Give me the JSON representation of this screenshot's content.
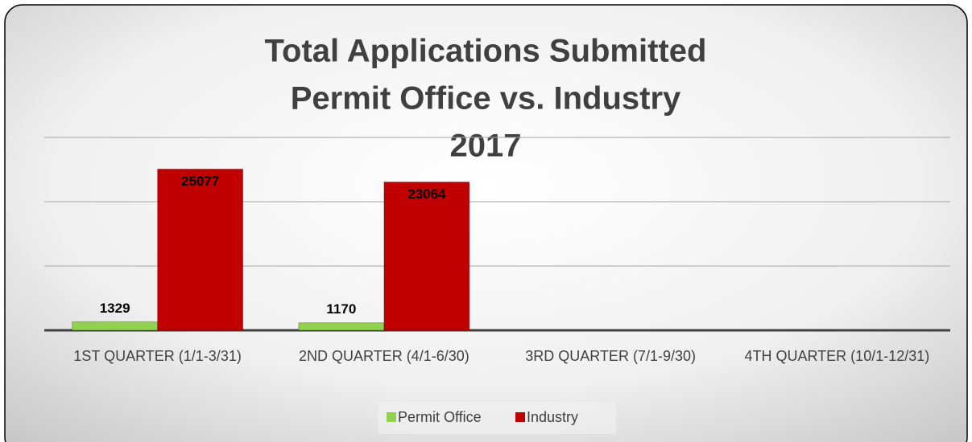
{
  "chart_data": {
    "type": "bar",
    "title": [
      "Total Applications Submitted",
      "Permit Office vs. Industry",
      "2017"
    ],
    "categories": [
      "1ST QUARTER (1/1-3/31)",
      "2ND QUARTER (4/1-6/30)",
      "3RD QUARTER (7/1-9/30)",
      "4TH QUARTER (10/1-12/31)"
    ],
    "series": [
      {
        "name": "Permit Office",
        "color": "#92d050",
        "values": [
          1329,
          1170,
          null,
          null
        ]
      },
      {
        "name": "Industry",
        "color": "#c00000",
        "values": [
          25077,
          23064,
          null,
          null
        ]
      }
    ],
    "ylim": [
      0,
      30000
    ],
    "yticks": [
      0,
      10000,
      20000,
      30000
    ],
    "grid": true,
    "legend": "bottom"
  }
}
